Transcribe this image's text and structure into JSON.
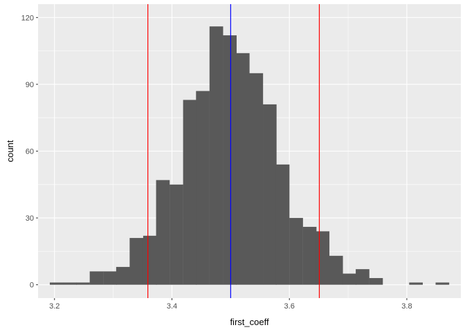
{
  "chart_data": {
    "type": "bar",
    "title": "",
    "xlabel": "first_coeff",
    "ylabel": "count",
    "xlim": [
      3.172,
      3.892
    ],
    "ylim": [
      -6,
      126
    ],
    "x_ticks": [
      "3.2",
      "3.4",
      "3.6",
      "3.8"
    ],
    "y_ticks": [
      "0",
      "30",
      "60",
      "90",
      "120"
    ],
    "bin_width": 0.0227,
    "bins": [
      {
        "x0": 3.192,
        "count": 1
      },
      {
        "x0": 3.215,
        "count": 1
      },
      {
        "x0": 3.237,
        "count": 1
      },
      {
        "x0": 3.26,
        "count": 6
      },
      {
        "x0": 3.283,
        "count": 6
      },
      {
        "x0": 3.305,
        "count": 8
      },
      {
        "x0": 3.328,
        "count": 21
      },
      {
        "x0": 3.351,
        "count": 22
      },
      {
        "x0": 3.373,
        "count": 47
      },
      {
        "x0": 3.396,
        "count": 45
      },
      {
        "x0": 3.419,
        "count": 83
      },
      {
        "x0": 3.441,
        "count": 87
      },
      {
        "x0": 3.464,
        "count": 116
      },
      {
        "x0": 3.487,
        "count": 112
      },
      {
        "x0": 3.509,
        "count": 104
      },
      {
        "x0": 3.532,
        "count": 95
      },
      {
        "x0": 3.555,
        "count": 81
      },
      {
        "x0": 3.577,
        "count": 54
      },
      {
        "x0": 3.6,
        "count": 30
      },
      {
        "x0": 3.623,
        "count": 26
      },
      {
        "x0": 3.645,
        "count": 24
      },
      {
        "x0": 3.668,
        "count": 13
      },
      {
        "x0": 3.691,
        "count": 5
      },
      {
        "x0": 3.713,
        "count": 7
      },
      {
        "x0": 3.736,
        "count": 3
      },
      {
        "x0": 3.759,
        "count": 0
      },
      {
        "x0": 3.781,
        "count": 0
      },
      {
        "x0": 3.804,
        "count": 1
      },
      {
        "x0": 3.827,
        "count": 0
      },
      {
        "x0": 3.849,
        "count": 1
      }
    ],
    "vlines": [
      {
        "x": 3.359,
        "color": "#ff0000"
      },
      {
        "x": 3.5,
        "color": "#0000ff"
      },
      {
        "x": 3.651,
        "color": "#ff0000"
      }
    ],
    "bar_color": "#595959",
    "panel_background": "#ebebeb",
    "grid_color": "#ffffff",
    "grid": true,
    "legend": "none"
  }
}
